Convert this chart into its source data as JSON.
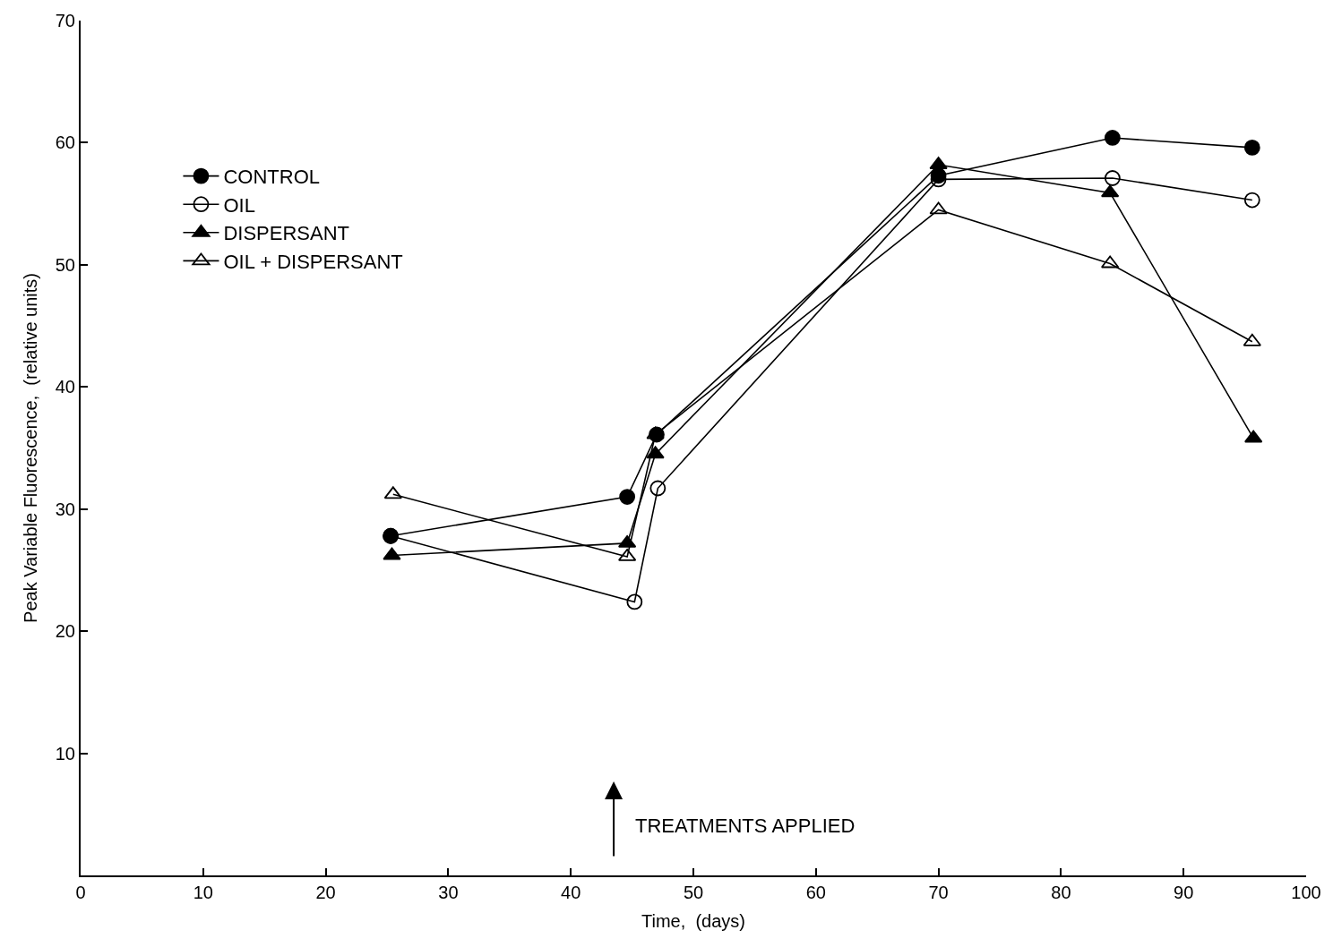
{
  "chart_data": {
    "type": "line",
    "xlabel": "Time,  (days)",
    "ylabel": "Peak Variable Fluorescence,  (relative units)",
    "series": [
      {
        "name": "CONTROL",
        "color": "#000000",
        "marker": "circle",
        "x": [
          25.3,
          44.6,
          47.0,
          70.0,
          84.2,
          95.6
        ],
        "values": [
          27.8,
          31.0,
          36.1,
          57.3,
          60.4,
          59.6
        ]
      },
      {
        "name": "OIL",
        "color": "#000000",
        "marker": "circle-open",
        "x": [
          25.3,
          45.2,
          47.1,
          70.0,
          84.2,
          95.6
        ],
        "values": [
          27.8,
          22.4,
          31.7,
          57.0,
          57.1,
          55.3
        ]
      },
      {
        "name": "DISPERSANT",
        "color": "#000000",
        "marker": "triangle",
        "x": [
          25.4,
          44.6,
          46.9,
          70.0,
          84.0,
          95.7
        ],
        "values": [
          26.2,
          27.2,
          34.5,
          58.2,
          55.9,
          35.8
        ]
      },
      {
        "name": "OIL + DISPERSANT",
        "color": "#000000",
        "marker": "triangle-open",
        "x": [
          25.5,
          44.6,
          46.9,
          70.0,
          84.0,
          95.6
        ],
        "values": [
          31.2,
          26.1,
          36.1,
          54.5,
          50.1,
          43.7
        ]
      }
    ],
    "xlim": [
      0,
      100
    ],
    "ylim": [
      0,
      70
    ],
    "xticks": [
      0,
      10,
      20,
      30,
      40,
      50,
      60,
      70,
      80,
      90,
      100
    ],
    "yticks": [
      {
        "value": 0,
        "label": null
      },
      10,
      20,
      30,
      40,
      50,
      60,
      70
    ],
    "annotations": [
      "TREATMENTS APPLIED"
    ],
    "legend": "top left",
    "line_style": "solid"
  }
}
